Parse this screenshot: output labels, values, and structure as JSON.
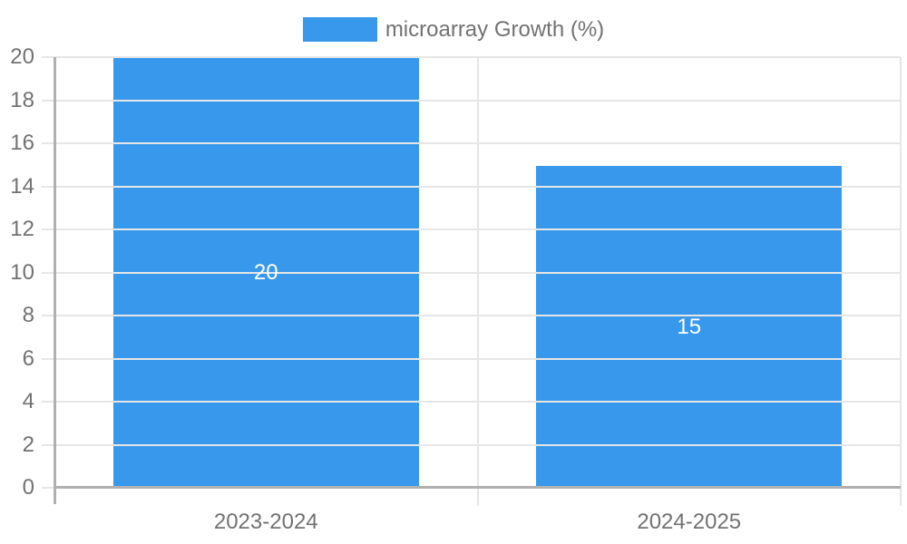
{
  "chart_data": {
    "type": "bar",
    "title": "",
    "legend": {
      "label": "microarray Growth (%)",
      "position": "top"
    },
    "categories": [
      "2023-2024",
      "2024-2025"
    ],
    "series": [
      {
        "name": "microarray Growth (%)",
        "values": [
          20,
          15
        ]
      }
    ],
    "bar_value_labels": [
      "20",
      "15"
    ],
    "ylim": [
      0,
      20
    ],
    "ytick_step": 2,
    "yticks": [
      0,
      2,
      4,
      6,
      8,
      10,
      12,
      14,
      16,
      18,
      20
    ],
    "grid": true,
    "colors": {
      "bar": "#3899ec",
      "bar_label_text": "#ffffff",
      "axis_label_text": "#727272",
      "gridline": "#e6e6e6",
      "axis_line": "#b0b0b0",
      "background": "#ffffff"
    }
  }
}
